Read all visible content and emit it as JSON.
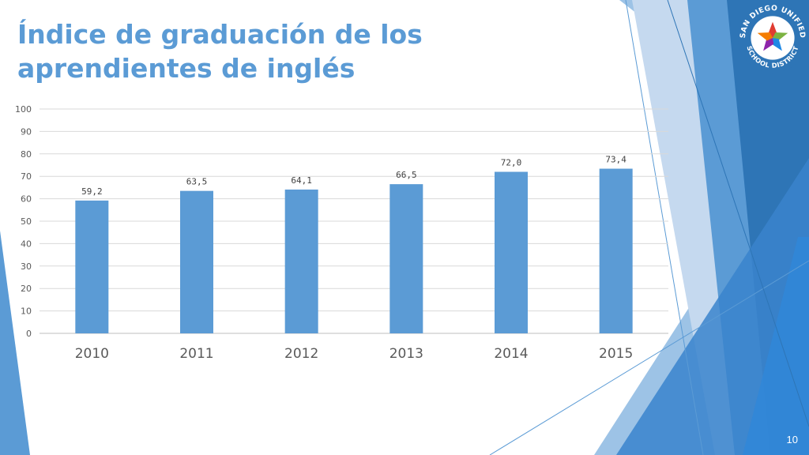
{
  "slide": {
    "title_line1": "Índice de graduación de los",
    "title_line2": "aprendientes de inglés",
    "page_number": "10"
  },
  "logo": {
    "text_top": "SAN DIEGO UNIFIED",
    "text_bottom": "SCHOOL DISTRICT"
  },
  "colors": {
    "accent": "#5b9bd5",
    "bar": "#5b9bd5",
    "dark_blue": "#2e75b6"
  },
  "chart_data": {
    "type": "bar",
    "categories": [
      "2010",
      "2011",
      "2012",
      "2013",
      "2014",
      "2015"
    ],
    "values": [
      59.2,
      63.5,
      64.1,
      66.5,
      72.0,
      73.4
    ],
    "data_labels": [
      "59,2",
      "63,5",
      "64,1",
      "66,5",
      "72,0",
      "73,4"
    ],
    "y_ticks": [
      0,
      10,
      20,
      30,
      40,
      50,
      60,
      70,
      80,
      90,
      100
    ],
    "ylim": [
      0,
      100
    ],
    "grid": true,
    "legend": "none"
  }
}
